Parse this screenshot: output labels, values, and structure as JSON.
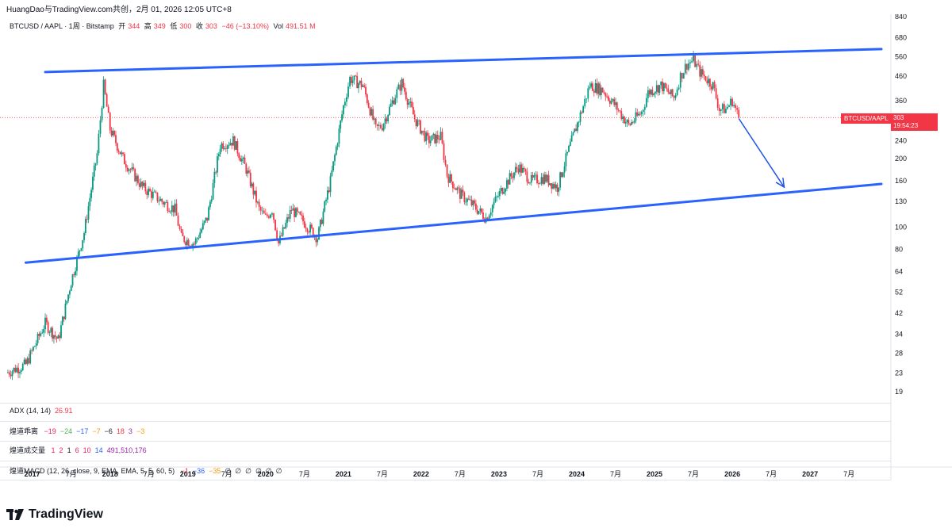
{
  "header": {
    "title": "HuangDao与TradingView.com共创，2月 01, 2026 12:05 UTC+8"
  },
  "legend": {
    "symbol": "BTCUSD / AAPL · 1周 · Bitstamp",
    "open_label": "开",
    "open": "344",
    "high_label": "高",
    "high": "349",
    "low_label": "低",
    "low": "300",
    "close_label": "收",
    "close": "303",
    "change": "−46 (−13.10%)",
    "vol_label": "Vol",
    "vol": "491.51 M"
  },
  "price_tag": {
    "symbol": "BTCUSD/AAPL",
    "price": "303",
    "countdown": "19:54:23"
  },
  "indicators": {
    "adx": {
      "label": "ADX (14, 14)",
      "value": "26.91"
    },
    "deviation": {
      "label": "煌道乖离",
      "values": [
        "−19",
        "−24",
        "−17",
        "−7",
        "−6",
        "18",
        "3",
        "−3"
      ],
      "colors": [
        "#e91e63",
        "#4caf50",
        "#2962ff",
        "#ff9800",
        "#131722",
        "#f23645",
        "#9c27b0",
        "#ff9800"
      ]
    },
    "volume": {
      "label": "煌道成交量",
      "values": [
        "1",
        "2",
        "1",
        "6",
        "10",
        "14",
        "491,510,176"
      ],
      "colors": [
        "#e91e63",
        "#e91e63",
        "#131722",
        "#e91e63",
        "#e91e63",
        "#2962ff",
        "#9c27b0"
      ]
    },
    "macd": {
      "label": "煌道MACD (12, 26, close, 9, EMA, EMA, 5, 5, 60, 5)",
      "values": [
        "−1",
        "−36",
        "−35",
        "∅",
        "∅",
        "∅",
        "∅",
        "∅",
        "∅"
      ],
      "colors": [
        "#f23645",
        "#2962ff",
        "#ff9800",
        "#131722",
        "#131722",
        "#131722",
        "#131722",
        "#131722",
        "#131722"
      ]
    }
  },
  "brand": {
    "name": "TradingView"
  },
  "chart_data": {
    "type": "candlestick",
    "y_scale": "log",
    "ylim": [
      17,
      860
    ],
    "xlim": [
      "2016-09",
      "2027-12"
    ],
    "yticks": [
      19,
      23,
      28,
      34,
      42,
      52,
      64,
      80,
      100,
      130,
      160,
      200,
      240,
      300,
      360,
      460,
      560,
      680,
      840
    ],
    "xticks": [
      {
        "label": "2017",
        "x": "2017-01"
      },
      {
        "label": "7月",
        "x": "2017-07"
      },
      {
        "label": "2018",
        "x": "2018-01"
      },
      {
        "label": "7月",
        "x": "2018-07"
      },
      {
        "label": "2019",
        "x": "2019-01"
      },
      {
        "label": "7月",
        "x": "2019-07"
      },
      {
        "label": "2020",
        "x": "2020-01"
      },
      {
        "label": "7月",
        "x": "2020-07"
      },
      {
        "label": "2021",
        "x": "2021-01"
      },
      {
        "label": "7月",
        "x": "2021-07"
      },
      {
        "label": "2022",
        "x": "2022-01"
      },
      {
        "label": "7月",
        "x": "2022-07"
      },
      {
        "label": "2023",
        "x": "2023-01"
      },
      {
        "label": "7月",
        "x": "2023-07"
      },
      {
        "label": "2024",
        "x": "2024-01"
      },
      {
        "label": "7月",
        "x": "2024-07"
      },
      {
        "label": "2025",
        "x": "2025-01"
      },
      {
        "label": "7月",
        "x": "2025-07"
      },
      {
        "label": "2026",
        "x": "2026-01"
      },
      {
        "label": "7月",
        "x": "2026-07"
      },
      {
        "label": "2027",
        "x": "2027-01"
      },
      {
        "label": "7月",
        "x": "2027-07"
      }
    ],
    "last_price": 303,
    "up_color": "#089981",
    "down_color": "#f23645",
    "price_path": [
      [
        "2016-09",
        23
      ],
      [
        "2016-12",
        25
      ],
      [
        "2017-03",
        38
      ],
      [
        "2017-05",
        32
      ],
      [
        "2017-07",
        58
      ],
      [
        "2017-09",
        95
      ],
      [
        "2017-11",
        210
      ],
      [
        "2017-12",
        420
      ],
      [
        "2018-01",
        270
      ],
      [
        "2018-03",
        200
      ],
      [
        "2018-06",
        150
      ],
      [
        "2018-09",
        130
      ],
      [
        "2018-11",
        120
      ],
      [
        "2018-12",
        90
      ],
      [
        "2019-02",
        85
      ],
      [
        "2019-04",
        110
      ],
      [
        "2019-06",
        230
      ],
      [
        "2019-08",
        240
      ],
      [
        "2019-10",
        180
      ],
      [
        "2019-12",
        120
      ],
      [
        "2020-01",
        110
      ],
      [
        "2020-02",
        120
      ],
      [
        "2020-03",
        85
      ],
      [
        "2020-05",
        120
      ],
      [
        "2020-07",
        105
      ],
      [
        "2020-09",
        90
      ],
      [
        "2020-11",
        160
      ],
      [
        "2021-01",
        340
      ],
      [
        "2021-02",
        450
      ],
      [
        "2021-04",
        420
      ],
      [
        "2021-06",
        270
      ],
      [
        "2021-07",
        280
      ],
      [
        "2021-09",
        380
      ],
      [
        "2021-10",
        430
      ],
      [
        "2021-12",
        300
      ],
      [
        "2022-02",
        240
      ],
      [
        "2022-04",
        250
      ],
      [
        "2022-05",
        170
      ],
      [
        "2022-07",
        140
      ],
      [
        "2022-09",
        125
      ],
      [
        "2022-11",
        110
      ],
      [
        "2022-12",
        125
      ],
      [
        "2023-02",
        155
      ],
      [
        "2023-04",
        185
      ],
      [
        "2023-06",
        160
      ],
      [
        "2023-08",
        165
      ],
      [
        "2023-10",
        150
      ],
      [
        "2023-12",
        230
      ],
      [
        "2024-02",
        340
      ],
      [
        "2024-03",
        420
      ],
      [
        "2024-05",
        400
      ],
      [
        "2024-07",
        340
      ],
      [
        "2024-09",
        280
      ],
      [
        "2024-11",
        320
      ],
      [
        "2024-12",
        390
      ],
      [
        "2025-02",
        420
      ],
      [
        "2025-04",
        370
      ],
      [
        "2025-05",
        460
      ],
      [
        "2025-06",
        520
      ],
      [
        "2025-07",
        540
      ],
      [
        "2025-08",
        480
      ],
      [
        "2025-10",
        420
      ],
      [
        "2025-11",
        330
      ],
      [
        "2025-12",
        330
      ],
      [
        "2026-01",
        360
      ],
      [
        "2026-02",
        303
      ]
    ],
    "trendlines": [
      {
        "from": [
          "2017-03",
          480
        ],
        "to": [
          "2027-12",
          605
        ],
        "color": "#2962ff"
      },
      {
        "from": [
          "2016-12",
          70
        ],
        "to": [
          "2027-12",
          155
        ],
        "color": "#2962ff"
      }
    ],
    "arrow": {
      "from": [
        "2026-02",
        300
      ],
      "to": [
        "2026-09",
        150
      ],
      "color": "#1e53e5"
    }
  }
}
